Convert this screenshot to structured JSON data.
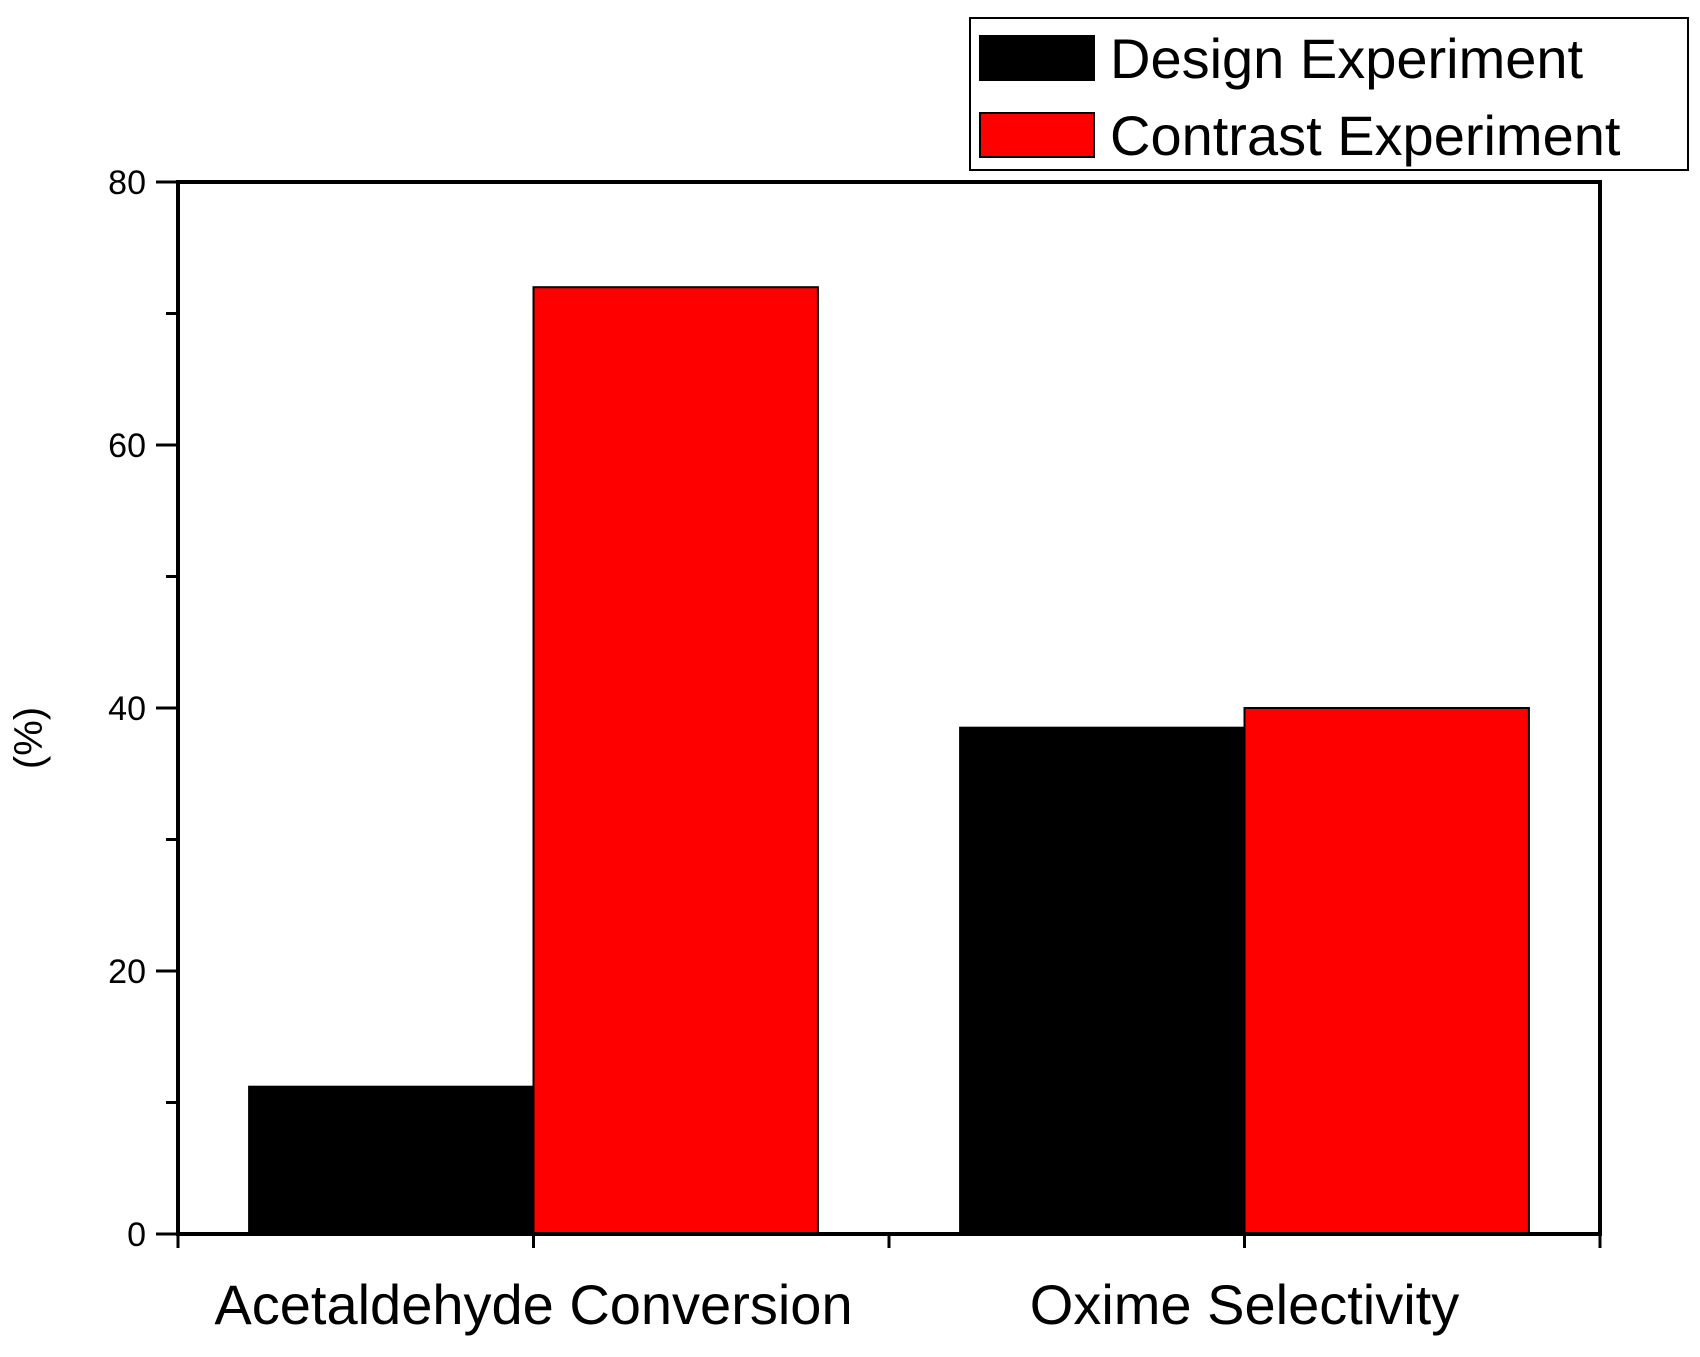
{
  "chart_data": {
    "type": "bar",
    "title": "",
    "xlabel": "",
    "ylabel": "(%)",
    "ylim": [
      0,
      80
    ],
    "yticks": [
      0,
      20,
      40,
      60,
      80
    ],
    "categories": [
      "Acetaldehyde Conversion",
      "Oxime Selectivity"
    ],
    "series": [
      {
        "name": "Design Experiment",
        "color": "#000000",
        "values": [
          11.2,
          38.5
        ]
      },
      {
        "name": "Contrast Experiment",
        "color": "#ff0000",
        "values": [
          72.0,
          40.0
        ]
      }
    ],
    "legend_position": "top-right",
    "grid": false
  }
}
